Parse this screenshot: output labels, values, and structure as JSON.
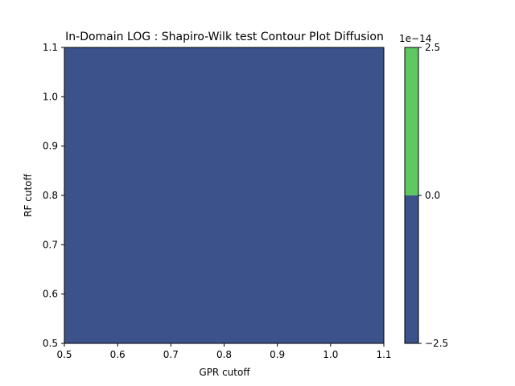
{
  "chart_data": {
    "type": "heatmap",
    "title": "In-Domain LOG : Shapiro-Wilk test Contour Plot Diffusion",
    "xlabel": "GPR cutoff",
    "ylabel": "RF cutoff",
    "xlim": [
      0.5,
      1.1
    ],
    "ylim": [
      0.5,
      1.1
    ],
    "x_ticks": [
      "0.5",
      "0.6",
      "0.7",
      "0.8",
      "0.9",
      "1.0",
      "1.1"
    ],
    "y_ticks": [
      "0.5",
      "0.6",
      "0.7",
      "0.8",
      "0.9",
      "1.0",
      "1.1"
    ],
    "filled_value": 0.0,
    "fill_color": "#3b528b",
    "colorbar": {
      "levels": [
        -2.5,
        0.0,
        2.5
      ],
      "tick_labels": [
        "−2.5",
        "0.0",
        "2.5"
      ],
      "colors": [
        "#3b528b",
        "#5ec962"
      ],
      "offset_label": "1e−14"
    },
    "grid": false
  }
}
